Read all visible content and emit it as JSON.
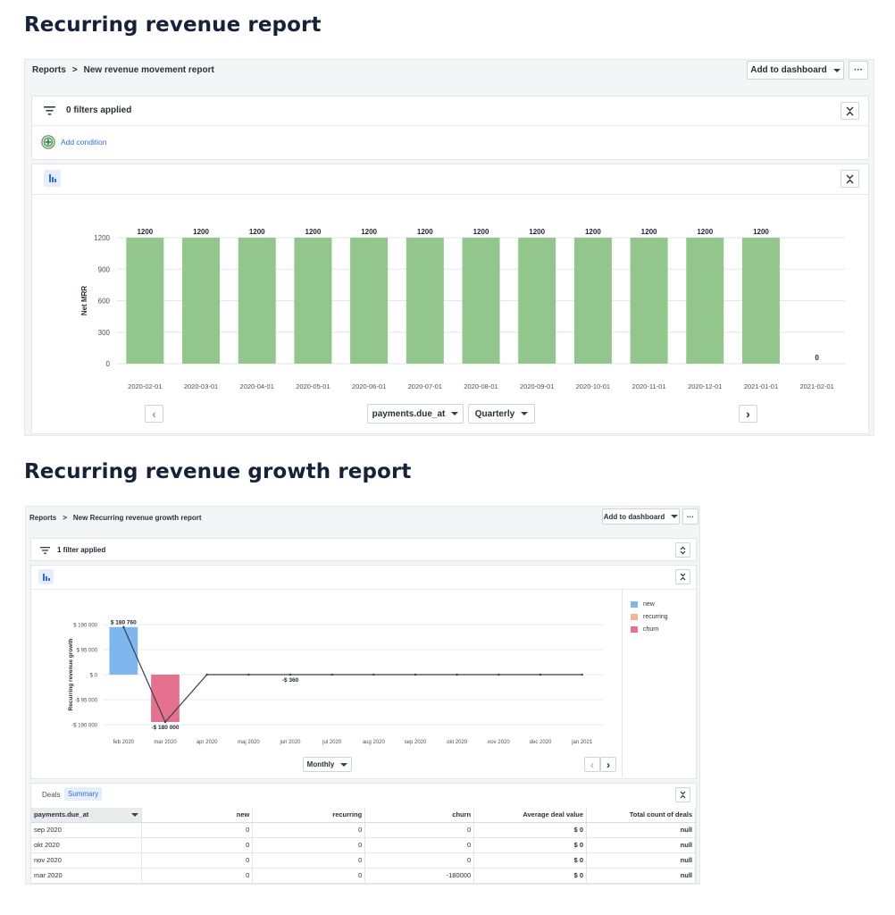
{
  "headings": {
    "revenue": "Recurring revenue report",
    "growth": "Recurring revenue growth report"
  },
  "report1": {
    "breadcrumb": {
      "root": "Reports",
      "separator": ">",
      "current": "New revenue movement report"
    },
    "add_to_dashboard": "Add to dashboard",
    "more": "···",
    "filters_label": "0 filters applied",
    "add_condition": "Add condition",
    "group_by": "payments.due_at",
    "granularity": "Quarterly",
    "prev": "‹",
    "next": "›",
    "chart_data": {
      "type": "bar",
      "ylabel": "Net MRR",
      "ylim": [
        0,
        1200
      ],
      "yticks": [
        "1200",
        "900",
        "600",
        "300",
        "0"
      ],
      "categories": [
        "2020-02-01",
        "2020-03-01",
        "2020-04-01",
        "2020-05-01",
        "2020-06-01",
        "2020-07-01",
        "2020-08-01",
        "2020-09-01",
        "2020-10-01",
        "2020-11-01",
        "2020-12-01",
        "2021-01-01",
        "2021-02-01"
      ],
      "values": [
        1200,
        1200,
        1200,
        1200,
        1200,
        1200,
        1200,
        1200,
        1200,
        1200,
        1200,
        1200,
        0
      ],
      "color": "#92c68c",
      "grid": true
    }
  },
  "report2": {
    "breadcrumb": {
      "root": "Reports",
      "separator": ">",
      "current": "New Recurring revenue growth report"
    },
    "add_to_dashboard": "Add to dashboard",
    "more": "···",
    "filters_label": "1 filter applied",
    "granularity": "Monthly",
    "prev": "‹",
    "next": "›",
    "tabs": [
      "Deals",
      "Summary"
    ],
    "active_tab": "Summary",
    "chart_data": {
      "type": "bar",
      "ylabel": "Recurring revenue growth",
      "yticks": [
        "$ 190 000",
        "$ 95 000",
        "$ 0",
        "-$ 95 000",
        "-$ 190 000"
      ],
      "ylim": [
        -190000,
        190000
      ],
      "categories": [
        "feb 2020",
        "mar 2020",
        "apr 2020",
        "maj 2020",
        "jun 2020",
        "jul 2020",
        "aug 2020",
        "sep 2020",
        "okt 2020",
        "nov 2020",
        "dec 2020",
        "jan 2021"
      ],
      "series": [
        {
          "name": "new",
          "values": [
            180760,
            0,
            0,
            0,
            0,
            0,
            0,
            0,
            0,
            0,
            0,
            0
          ],
          "color": "#7eb6ee"
        },
        {
          "name": "recurring",
          "values": [
            0,
            0,
            0,
            0,
            0,
            0,
            0,
            0,
            0,
            0,
            0,
            0
          ],
          "color": "#f2b498"
        },
        {
          "name": "churn",
          "values": [
            0,
            -180000,
            0,
            0,
            0,
            0,
            0,
            0,
            0,
            0,
            0,
            0
          ],
          "color": "#e4728f"
        }
      ],
      "net_line": [
        180760,
        -180000,
        0,
        0,
        0,
        0,
        0,
        0,
        0,
        0,
        0,
        0
      ],
      "data_labels": [
        "$ 180 760",
        "-$ 180 000",
        "-$ 360"
      ],
      "legend_position": "right",
      "grid": true
    },
    "table": {
      "columns": [
        "payments.due_at",
        "new",
        "recurring",
        "churn",
        "Average deal value",
        "Total count of deals"
      ],
      "rows": [
        [
          "sep 2020",
          "0",
          "0",
          "0",
          "$ 0",
          "null"
        ],
        [
          "okt 2020",
          "0",
          "0",
          "0",
          "$ 0",
          "null"
        ],
        [
          "nov 2020",
          "0",
          "0",
          "0",
          "$ 0",
          "null"
        ],
        [
          "mar 2020",
          "0",
          "0",
          "-180000",
          "$ 0",
          "null"
        ]
      ]
    }
  }
}
